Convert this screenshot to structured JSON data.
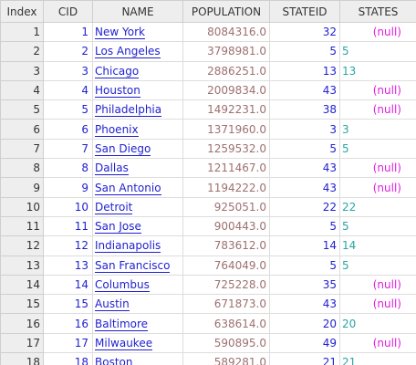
{
  "table": {
    "headers": {
      "index": "Index",
      "cid": "CID",
      "name": "NAME",
      "population": "POPULATION",
      "stateid": "STATEID",
      "states": "STATES"
    },
    "rows": [
      {
        "index": "1",
        "cid": "1",
        "name": "New York",
        "population": "8084316.0",
        "stateid": "32",
        "states": "(null)",
        "states_null": true
      },
      {
        "index": "2",
        "cid": "2",
        "name": "Los Angeles",
        "population": "3798981.0",
        "stateid": "5",
        "states": "5",
        "states_null": false
      },
      {
        "index": "3",
        "cid": "3",
        "name": "Chicago",
        "population": "2886251.0",
        "stateid": "13",
        "states": "13",
        "states_null": false
      },
      {
        "index": "4",
        "cid": "4",
        "name": "Houston",
        "population": "2009834.0",
        "stateid": "43",
        "states": "(null)",
        "states_null": true
      },
      {
        "index": "5",
        "cid": "5",
        "name": "Philadelphia",
        "population": "1492231.0",
        "stateid": "38",
        "states": "(null)",
        "states_null": true
      },
      {
        "index": "6",
        "cid": "6",
        "name": "Phoenix",
        "population": "1371960.0",
        "stateid": "3",
        "states": "3",
        "states_null": false
      },
      {
        "index": "7",
        "cid": "7",
        "name": "San Diego",
        "population": "1259532.0",
        "stateid": "5",
        "states": "5",
        "states_null": false
      },
      {
        "index": "8",
        "cid": "8",
        "name": "Dallas",
        "population": "1211467.0",
        "stateid": "43",
        "states": "(null)",
        "states_null": true
      },
      {
        "index": "9",
        "cid": "9",
        "name": "San Antonio",
        "population": "1194222.0",
        "stateid": "43",
        "states": "(null)",
        "states_null": true
      },
      {
        "index": "10",
        "cid": "10",
        "name": "Detroit",
        "population": "925051.0",
        "stateid": "22",
        "states": "22",
        "states_null": false
      },
      {
        "index": "11",
        "cid": "11",
        "name": "San Jose",
        "population": "900443.0",
        "stateid": "5",
        "states": "5",
        "states_null": false
      },
      {
        "index": "12",
        "cid": "12",
        "name": "Indianapolis",
        "population": "783612.0",
        "stateid": "14",
        "states": "14",
        "states_null": false
      },
      {
        "index": "13",
        "cid": "13",
        "name": "San Francisco",
        "population": "764049.0",
        "stateid": "5",
        "states": "5",
        "states_null": false
      },
      {
        "index": "14",
        "cid": "14",
        "name": "Columbus",
        "population": "725228.0",
        "stateid": "35",
        "states": "(null)",
        "states_null": true
      },
      {
        "index": "15",
        "cid": "15",
        "name": "Austin",
        "population": "671873.0",
        "stateid": "43",
        "states": "(null)",
        "states_null": true
      },
      {
        "index": "16",
        "cid": "16",
        "name": "Baltimore",
        "population": "638614.0",
        "stateid": "20",
        "states": "20",
        "states_null": false
      },
      {
        "index": "17",
        "cid": "17",
        "name": "Milwaukee",
        "population": "590895.0",
        "stateid": "49",
        "states": "(null)",
        "states_null": true
      },
      {
        "index": "18",
        "cid": "18",
        "name": "Boston",
        "population": "589281.0",
        "stateid": "21",
        "states": "21",
        "states_null": false
      }
    ]
  },
  "colors": {
    "header_bg": "#eeeeee",
    "cid_blue": "#1f1fd1",
    "population_text": "#9e7070",
    "null_magenta": "#e01ee0",
    "ref_teal": "#2aa5a5"
  }
}
